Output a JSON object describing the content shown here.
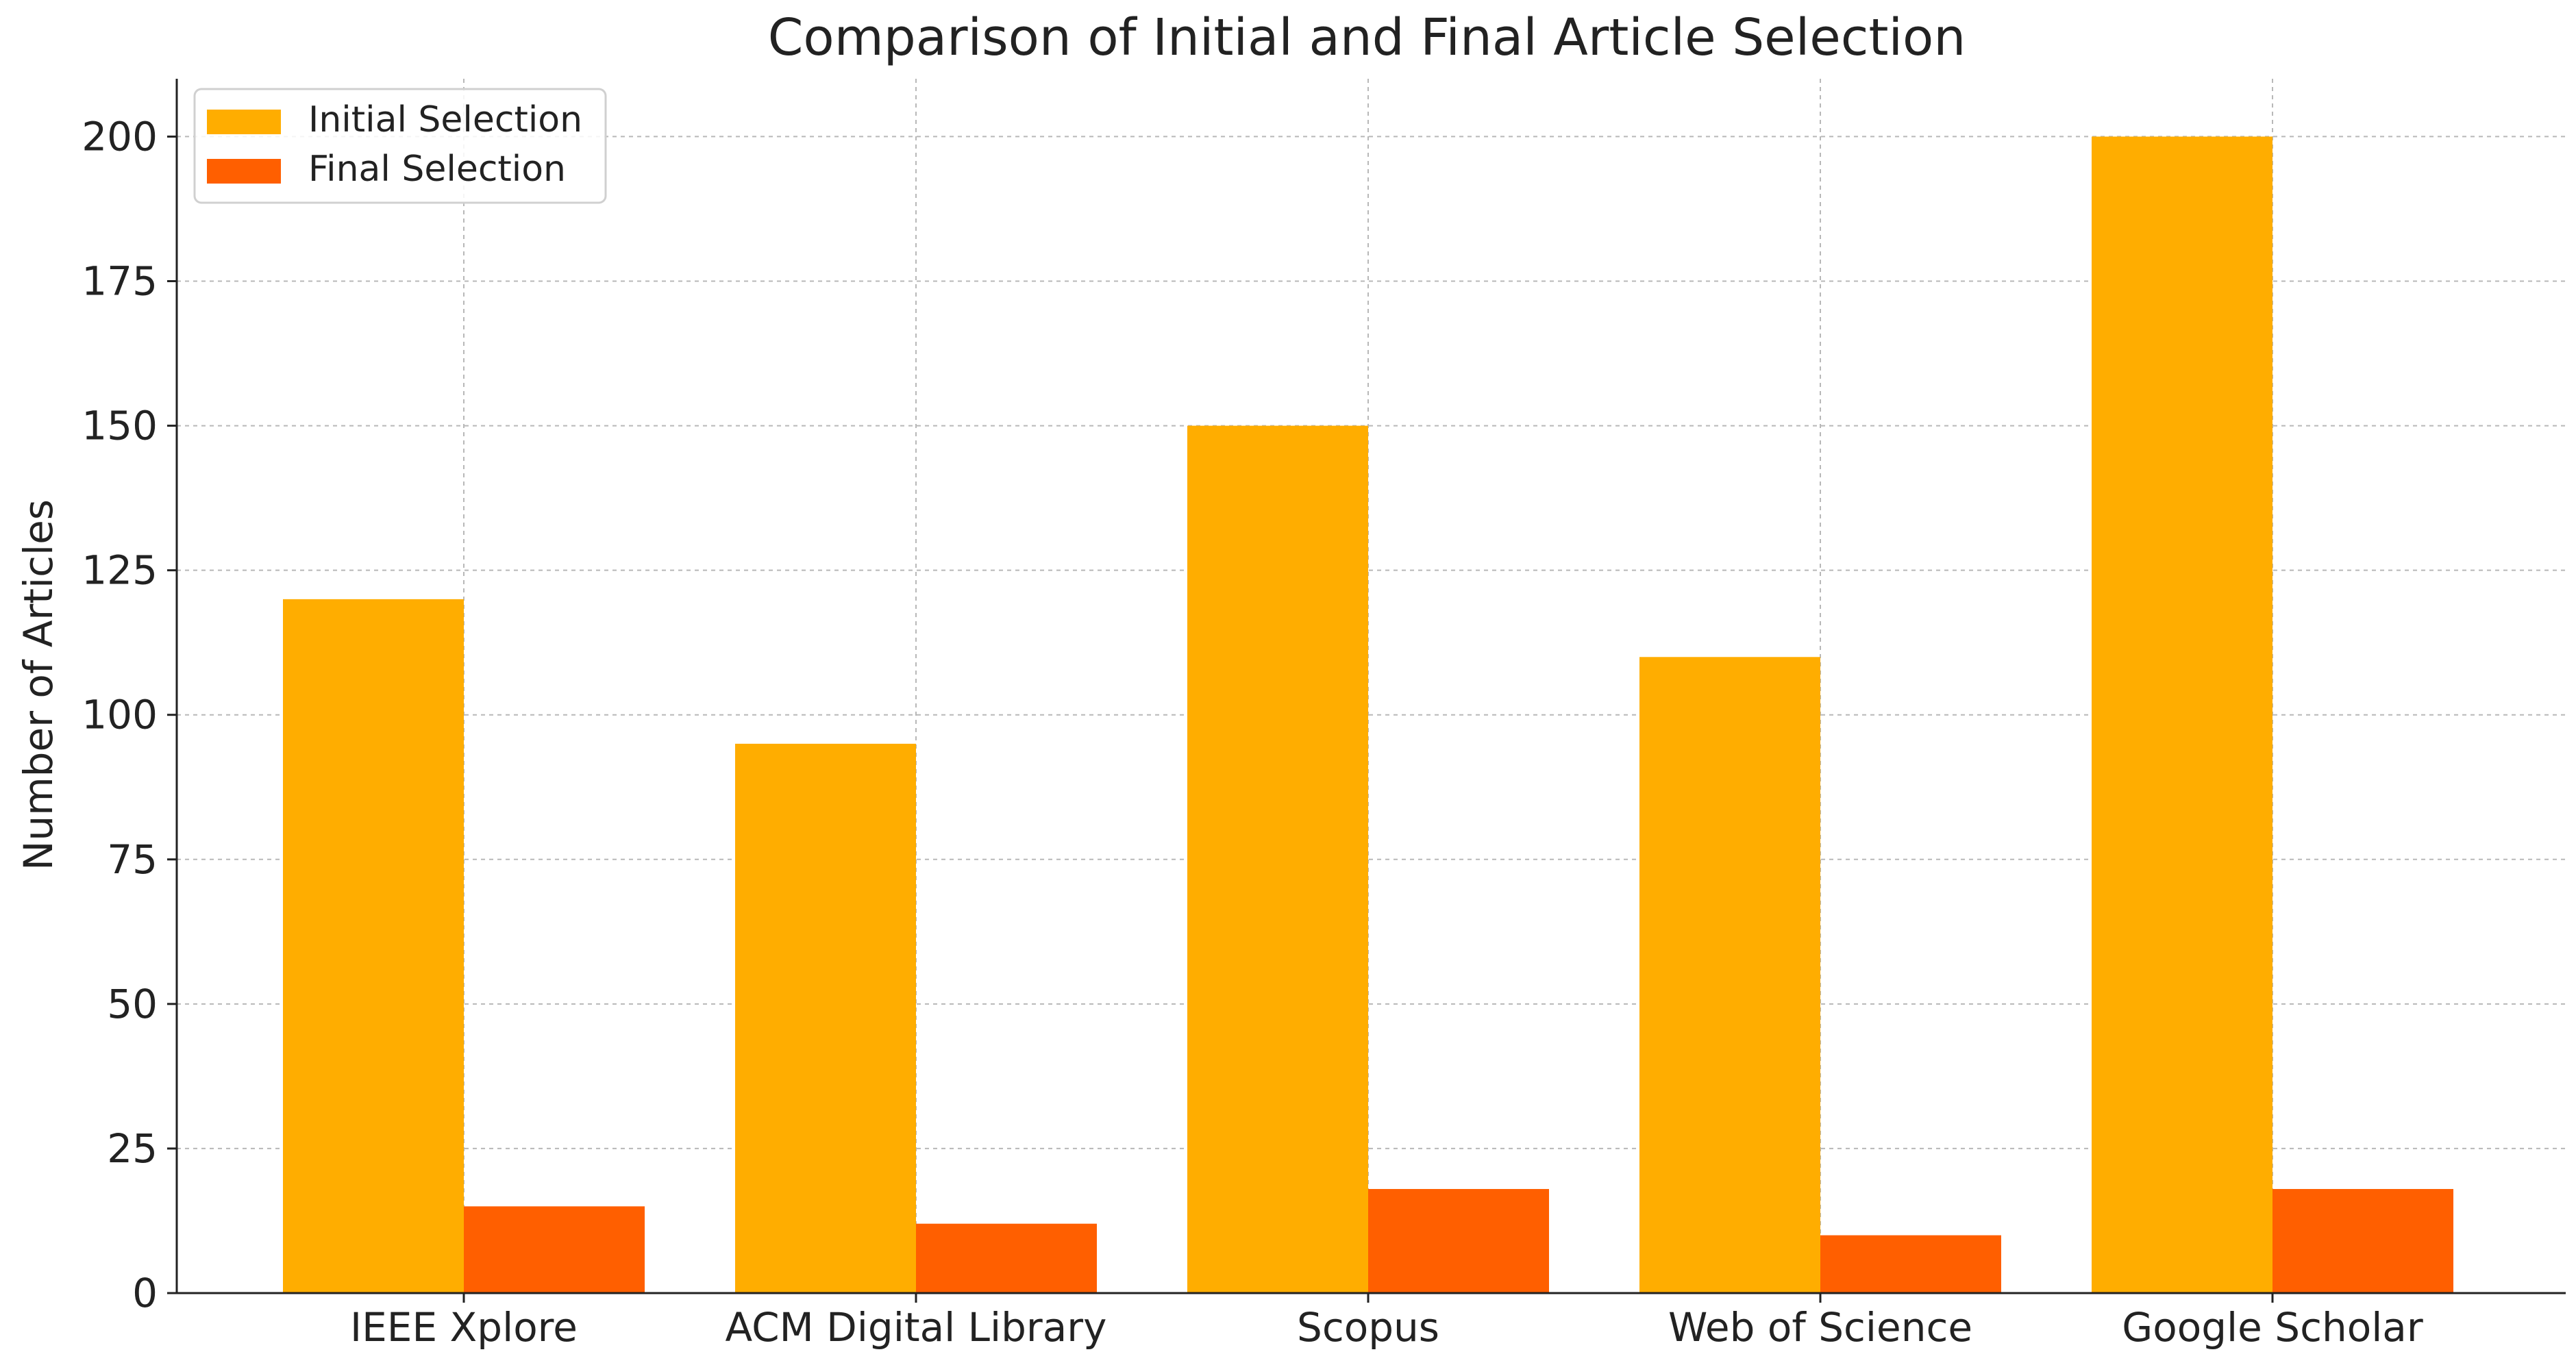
{
  "chart_data": {
    "type": "bar",
    "title": "Comparison of Initial and Final Article Selection",
    "xlabel": "",
    "ylabel": "Number of Articles",
    "categories": [
      "IEEE Xplore",
      "ACM Digital Library",
      "Scopus",
      "Web of Science",
      "Google Scholar"
    ],
    "series": [
      {
        "name": "Initial Selection",
        "color": "#FFAD00",
        "values": [
          120,
          95,
          150,
          110,
          200
        ]
      },
      {
        "name": "Final Selection",
        "color": "#FF5F00",
        "values": [
          15,
          12,
          18,
          10,
          18
        ]
      }
    ],
    "ylim": [
      0,
      210
    ],
    "yticks": [
      0,
      25,
      50,
      75,
      100,
      125,
      150,
      175,
      200
    ],
    "grid": true,
    "legend_position": "top-left"
  }
}
